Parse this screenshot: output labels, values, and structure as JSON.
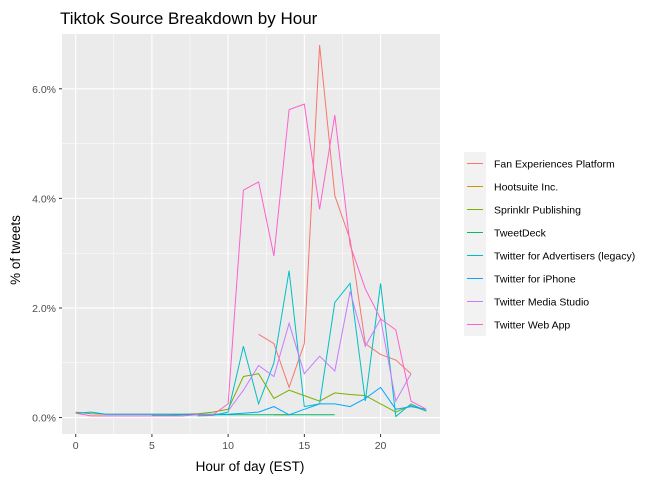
{
  "chart_data": {
    "type": "line",
    "title": "Tiktok Source Breakdown by Hour",
    "xlabel": "Hour of day (EST)",
    "ylabel": "% of tweets",
    "xlim": [
      -0.9,
      23.9
    ],
    "ylim": [
      -0.3,
      7.0
    ],
    "x_ticks": [
      0,
      5,
      10,
      15,
      20
    ],
    "x_tick_labels": [
      "0",
      "5",
      "10",
      "15",
      "20"
    ],
    "y_ticks": [
      0,
      2,
      4,
      6
    ],
    "y_tick_labels": [
      "0.0%",
      "2.0%",
      "4.0%",
      "6.0%"
    ],
    "grid": true,
    "legend_position": "right",
    "series": [
      {
        "name": "Fan Experiences Platform",
        "color": "#F8766D",
        "x": [
          12,
          13,
          14,
          15,
          16,
          17,
          18,
          19,
          20,
          21,
          22
        ],
        "y": [
          1.52,
          1.35,
          0.55,
          1.35,
          6.8,
          4.05,
          3.25,
          1.35,
          1.15,
          1.05,
          0.8
        ]
      },
      {
        "name": "Hootsuite Inc.",
        "color": "#CD9600",
        "x": [
          13,
          14
        ],
        "y": [
          0.05,
          0.05
        ]
      },
      {
        "name": "Sprinklr Publishing",
        "color": "#7CAE00",
        "x": [
          0,
          1,
          2,
          3,
          4,
          5,
          6,
          7,
          8,
          9,
          10,
          11,
          12,
          13,
          14,
          15,
          16,
          17,
          18,
          19,
          20,
          21,
          22,
          23
        ],
        "y": [
          0.1,
          0.07,
          0.06,
          0.06,
          0.06,
          0.06,
          0.06,
          0.06,
          0.07,
          0.1,
          0.15,
          0.75,
          0.8,
          0.35,
          0.5,
          0.4,
          0.3,
          0.45,
          0.42,
          0.4,
          0.25,
          0.1,
          0.22,
          0.12
        ]
      },
      {
        "name": "TweetDeck",
        "color": "#00BE67",
        "x": [
          5,
          6,
          7,
          8,
          9,
          10,
          11,
          12,
          13,
          14,
          15,
          16,
          17
        ],
        "y": [
          0.04,
          0.04,
          0.05,
          0.05,
          0.05,
          0.05,
          0.05,
          0.05,
          0.05,
          0.05,
          0.05,
          0.05,
          0.05
        ]
      },
      {
        "name": "Twitter for Advertisers (legacy)",
        "color": "#00BFC4",
        "x": [
          8,
          9,
          10,
          11,
          12,
          13,
          14,
          15,
          16,
          17,
          18,
          19,
          20,
          21,
          22,
          23
        ],
        "y": [
          0.03,
          0.04,
          0.1,
          1.3,
          0.25,
          1.0,
          2.68,
          0.2,
          0.25,
          2.1,
          2.45,
          0.3,
          2.45,
          0.02,
          0.25,
          0.12
        ]
      },
      {
        "name": "Twitter for iPhone",
        "color": "#00A9FF",
        "x": [
          0,
          1,
          2,
          3,
          4,
          5,
          6,
          7,
          8,
          9,
          10,
          11,
          12,
          13,
          14,
          15,
          16,
          17,
          18,
          19,
          20,
          21,
          22,
          23
        ],
        "y": [
          0.08,
          0.1,
          0.06,
          0.06,
          0.06,
          0.06,
          0.06,
          0.06,
          0.06,
          0.06,
          0.06,
          0.08,
          0.1,
          0.2,
          0.05,
          0.15,
          0.25,
          0.25,
          0.2,
          0.35,
          0.55,
          0.15,
          0.2,
          0.15
        ]
      },
      {
        "name": "Twitter Media Studio",
        "color": "#C77CFF",
        "x": [
          10,
          11,
          12,
          13,
          14,
          15,
          16,
          17,
          18,
          19,
          20,
          21,
          22
        ],
        "y": [
          0.12,
          0.5,
          0.95,
          0.75,
          1.72,
          0.8,
          1.12,
          0.85,
          2.3,
          1.3,
          1.8,
          0.3,
          0.8
        ]
      },
      {
        "name": "Twitter Web App",
        "color": "#FF61CC",
        "x": [
          0,
          1,
          2,
          3,
          4,
          5,
          6,
          7,
          8,
          9,
          10,
          11,
          12,
          13,
          14,
          15,
          16,
          17,
          18,
          19,
          20,
          21,
          22,
          23
        ],
        "y": [
          0.08,
          0.03,
          0.03,
          0.03,
          0.03,
          0.03,
          0.03,
          0.03,
          0.05,
          0.05,
          0.25,
          4.15,
          4.3,
          2.95,
          5.62,
          5.72,
          3.8,
          5.52,
          3.15,
          2.35,
          1.8,
          1.6,
          0.3,
          0.15
        ]
      }
    ]
  }
}
